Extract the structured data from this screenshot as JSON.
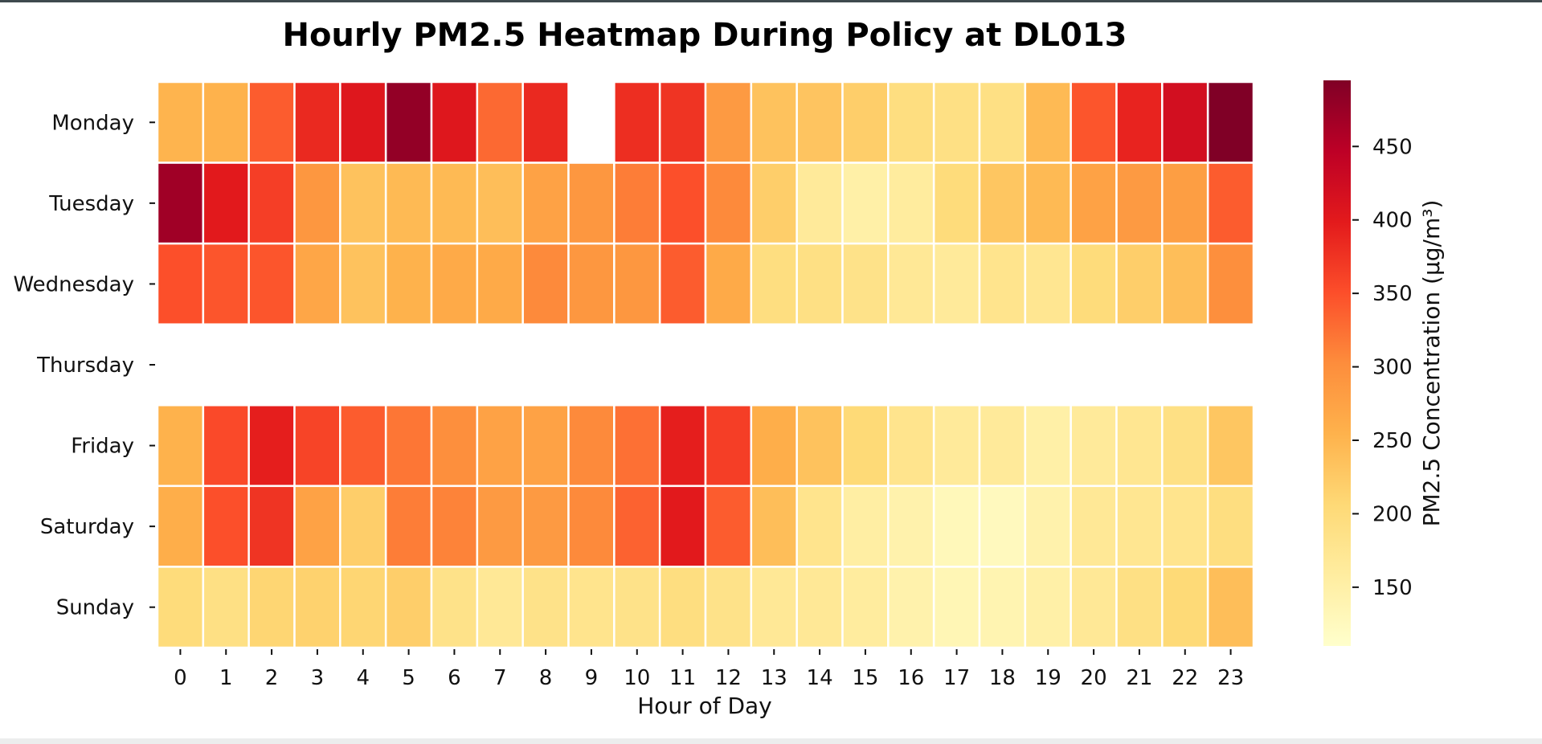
{
  "chart_data": {
    "type": "heatmap",
    "title": "Hourly PM2.5 Heatmap During Policy at DL013",
    "xlabel": "Hour of Day",
    "ylabel": "",
    "x": [
      "0",
      "1",
      "2",
      "3",
      "4",
      "5",
      "6",
      "7",
      "8",
      "9",
      "10",
      "11",
      "12",
      "13",
      "14",
      "15",
      "16",
      "17",
      "18",
      "19",
      "20",
      "21",
      "22",
      "23"
    ],
    "y": [
      "Monday",
      "Tuesday",
      "Wednesday",
      "Thursday",
      "Friday",
      "Saturday",
      "Sunday"
    ],
    "values": [
      [
        252,
        255,
        340,
        385,
        405,
        480,
        405,
        330,
        385,
        null,
        380,
        375,
        285,
        235,
        232,
        220,
        195,
        190,
        190,
        245,
        345,
        390,
        420,
        495
      ],
      [
        470,
        400,
        365,
        290,
        235,
        245,
        245,
        240,
        275,
        290,
        315,
        350,
        305,
        220,
        165,
        150,
        160,
        200,
        230,
        245,
        275,
        285,
        280,
        340
      ],
      [
        350,
        345,
        345,
        270,
        235,
        255,
        265,
        265,
        305,
        290,
        290,
        340,
        265,
        195,
        190,
        185,
        170,
        165,
        180,
        175,
        200,
        220,
        240,
        300
      ],
      [
        null,
        null,
        null,
        null,
        null,
        null,
        null,
        null,
        null,
        null,
        null,
        null,
        null,
        null,
        null,
        null,
        null,
        null,
        null,
        null,
        null,
        null,
        null,
        null
      ],
      [
        255,
        355,
        395,
        360,
        340,
        320,
        300,
        275,
        275,
        305,
        325,
        395,
        365,
        260,
        235,
        205,
        180,
        165,
        165,
        150,
        165,
        175,
        190,
        230
      ],
      [
        260,
        350,
        375,
        275,
        220,
        315,
        310,
        285,
        285,
        305,
        335,
        400,
        340,
        240,
        180,
        155,
        145,
        130,
        125,
        145,
        170,
        175,
        180,
        195
      ],
      [
        200,
        190,
        210,
        215,
        210,
        220,
        185,
        170,
        185,
        180,
        185,
        195,
        185,
        170,
        170,
        160,
        145,
        135,
        140,
        150,
        170,
        190,
        205,
        240
      ]
    ],
    "colorbar": {
      "label": "PM2.5 Concentration (μg/m³)",
      "min": 110,
      "max": 495,
      "ticks": [
        "150",
        "200",
        "250",
        "300",
        "350",
        "400",
        "450"
      ],
      "colormap": "YlOrRd"
    },
    "grid": false,
    "legend": "colorbar-right"
  }
}
